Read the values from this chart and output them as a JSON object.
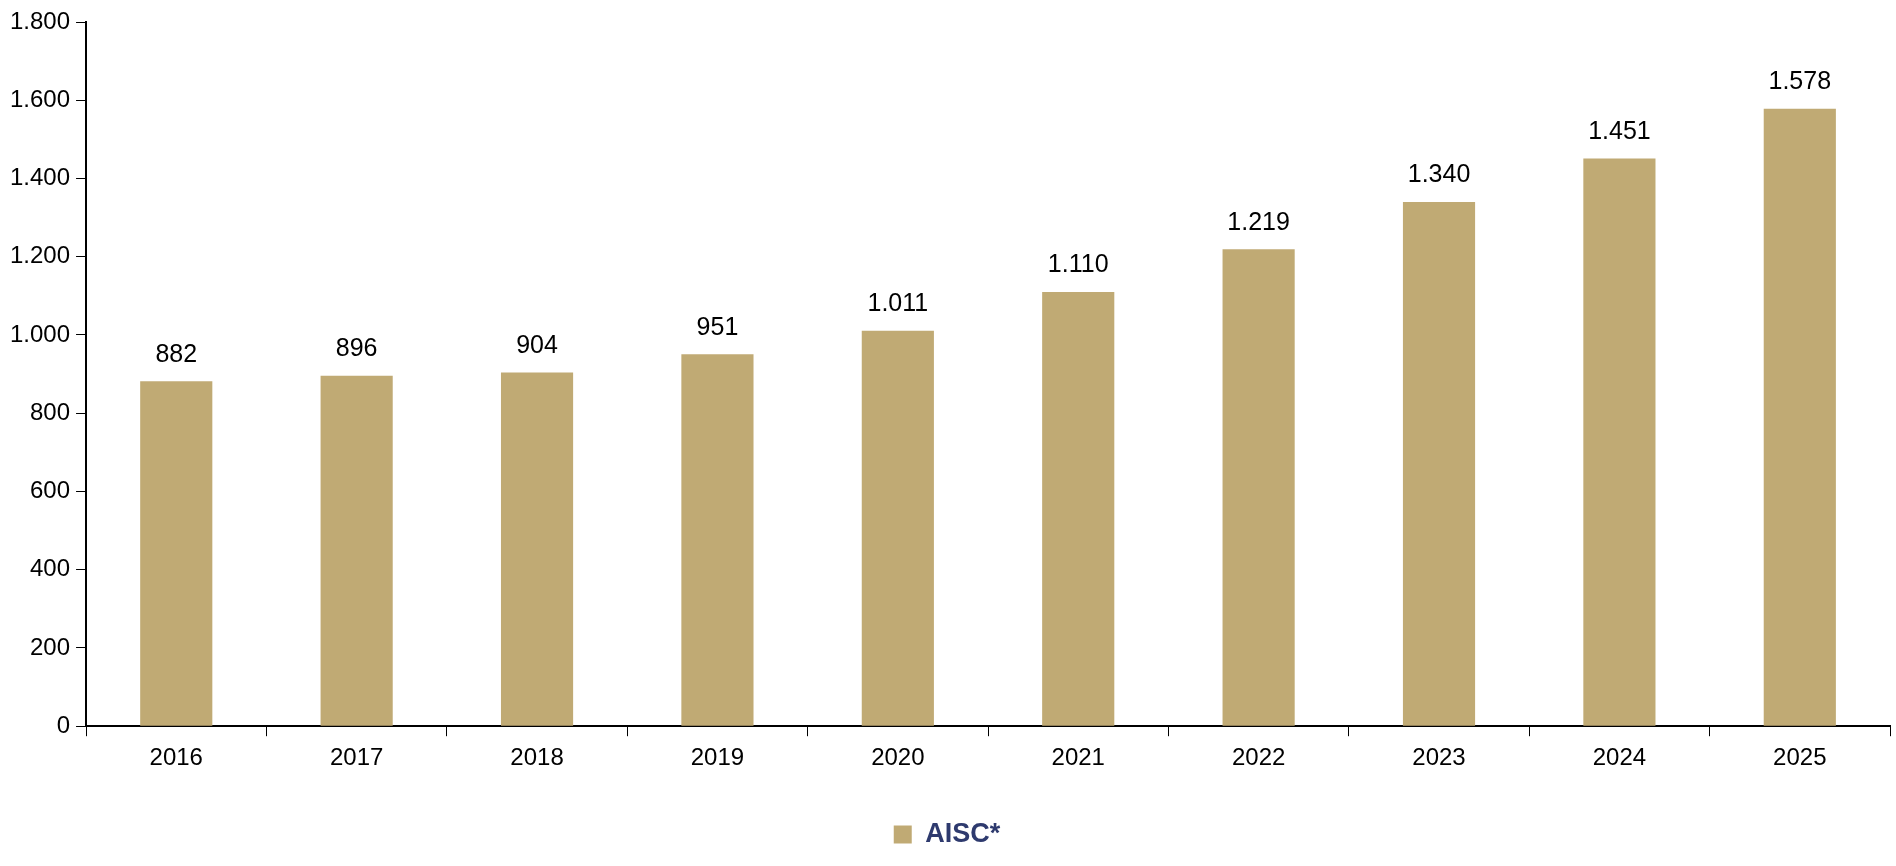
{
  "chart_data": {
    "type": "bar",
    "categories": [
      "2016",
      "2017",
      "2018",
      "2019",
      "2020",
      "2021",
      "2022",
      "2023",
      "2024",
      "2025"
    ],
    "series": [
      {
        "name": "AISC*",
        "color": "#c0aa74",
        "values": [
          882,
          896,
          904,
          951,
          1011,
          1110,
          1219,
          1340,
          1451,
          1578
        ],
        "value_labels": [
          "882",
          "896",
          "904",
          "951",
          "1.011",
          "1.110",
          "1.219",
          "1.340",
          "1.451",
          "1.578"
        ]
      }
    ],
    "ylim": [
      0,
      1800
    ],
    "yticks": [
      0,
      200,
      400,
      600,
      800,
      {
        "value": 1000,
        "label": "1.000"
      },
      {
        "value": 1200,
        "label": "1.200"
      },
      {
        "value": 1400,
        "label": "1.400"
      },
      {
        "value": 1600,
        "label": "1.600"
      },
      {
        "value": 1800,
        "label": "1.800"
      }
    ],
    "grid": false,
    "legend": "bottom"
  }
}
